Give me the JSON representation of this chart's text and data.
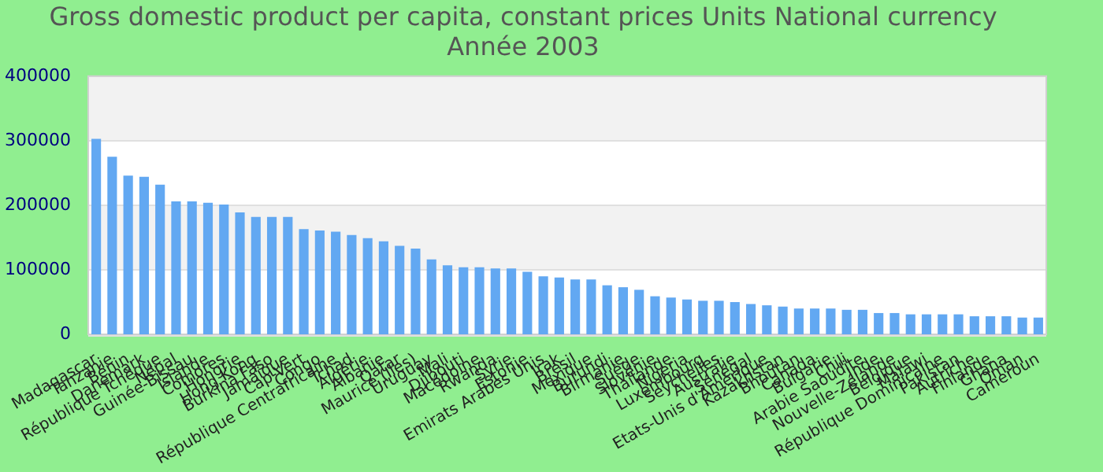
{
  "chart_data": {
    "type": "bar",
    "title": [
      "Gross domestic product per capita, constant prices Units National currency",
      "Année 2003"
    ],
    "categories": [
      "Madagascar",
      "Tanzanie",
      "Bénin",
      "Danemark",
      "République Tchèque",
      "Népal",
      "Guinée-Bissau",
      "Islande",
      "Comores",
      "Hongrie",
      "Hong Kong",
      "Burkina Faso",
      "Jamaïque",
      "Cap-Vert",
      "Congo",
      "République Centrafricaine",
      "Tchad",
      "Algérie",
      "Albanie",
      "Qatar",
      "Maurice (Iles)",
      "Uruguay",
      "Mali",
      "Djibouti",
      "Macédoine",
      "Rwanda",
      "Syrie",
      "Estonie",
      "Emirats Arabes Unis",
      "Irak",
      "Brésil",
      "Mexique",
      "Burundi",
      "Birmanie",
      "Suède",
      "Slovénie",
      "Thaïlande",
      "Nigeria",
      "Luxembourg",
      "Seychelles",
      "Australie",
      "Sénégal",
      "Etats-Unis d'Amérique",
      "Kazakhstan",
      "Bhoutan",
      "Canada",
      "Bulgarie",
      "Chili",
      "Arabie Saoudite",
      "Inde",
      "Nouvelle-Zélande",
      "Belgique",
      "Malawi",
      "République Dominicaine",
      "Pakistan",
      "Autriche",
      "Finlande",
      "Ghana",
      "Oman",
      "Cameroun"
    ],
    "values": [
      303000,
      275000,
      246000,
      244000,
      232000,
      206000,
      206000,
      204000,
      201000,
      189000,
      182000,
      182000,
      182000,
      163000,
      161000,
      159000,
      154000,
      149000,
      144000,
      137000,
      133000,
      116000,
      107000,
      104000,
      104000,
      102000,
      102000,
      97000,
      90000,
      88000,
      85000,
      85000,
      76000,
      73000,
      69000,
      59000,
      57000,
      54000,
      52000,
      52000,
      50000,
      47000,
      45000,
      43000,
      40000,
      40000,
      40000,
      38000,
      38000,
      33000,
      33000,
      31000,
      31000,
      31000,
      31000,
      28000,
      28000,
      28000,
      26000,
      26000
    ],
    "color": "#62a8f2",
    "ylim": [
      0,
      400000
    ],
    "yticks": [
      0,
      100000,
      200000,
      300000,
      400000
    ],
    "grid": "y",
    "legend": false
  }
}
